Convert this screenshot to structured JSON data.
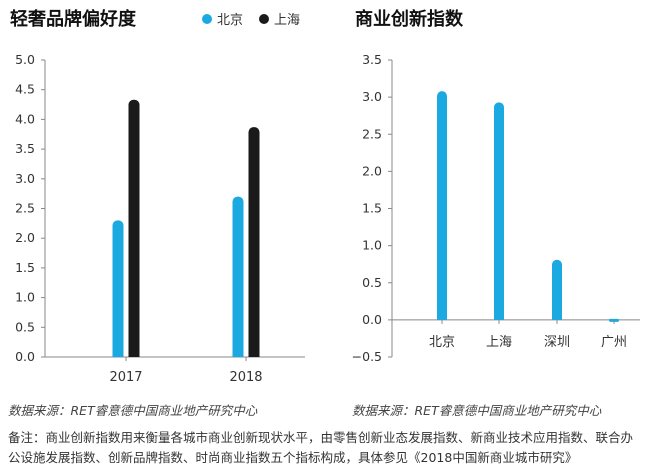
{
  "colors": {
    "beijing": "#1ba9e1",
    "shanghai": "#1a1a1a",
    "axis": "#888888",
    "grid": "#cccccc"
  },
  "charts": [
    {
      "title": "轻奢品牌偏好度",
      "legend": [
        "北京",
        "上海"
      ]
    },
    {
      "title": "商业创新指数"
    }
  ],
  "chart_data": [
    {
      "type": "bar",
      "title": "轻奢品牌偏好度",
      "categories": [
        "2017",
        "2018"
      ],
      "series": [
        {
          "name": "北京",
          "values": [
            2.3,
            2.7
          ]
        },
        {
          "name": "上海",
          "values": [
            4.33,
            3.87
          ]
        }
      ],
      "ylim": [
        0,
        5.0
      ],
      "yticks": [
        "5.0",
        "4.5",
        "4.0",
        "3.5",
        "3.0",
        "2.5",
        "2.0",
        "1.5",
        "1.0",
        "0.5",
        "0.0"
      ],
      "grid": false,
      "legend_position": "top"
    },
    {
      "type": "bar",
      "title": "商业创新指数",
      "categories": [
        "北京",
        "上海",
        "深圳",
        "广州"
      ],
      "values": [
        3.08,
        2.93,
        0.81,
        -0.01
      ],
      "ylim": [
        -0.5,
        3.5
      ],
      "yticks": [
        "3.5",
        "3.0",
        "2.5",
        "2.0",
        "1.5",
        "1.0",
        "0.5",
        "0.0",
        "−0.5"
      ],
      "grid": false
    }
  ],
  "sources": [
    "数据来源：RET睿意德中国商业地产研究中心",
    "数据来源：RET睿意德中国商业地产研究中心"
  ],
  "note": "备注：商业创新指数用来衡量各城市商业创新现状水平，由零售创新业态发展指数、新商业技术应用指数、联合办公设施发展指数、创新品牌指数、时尚商业指数五个指标构成，具体参见《2018中国新商业城市研究》"
}
